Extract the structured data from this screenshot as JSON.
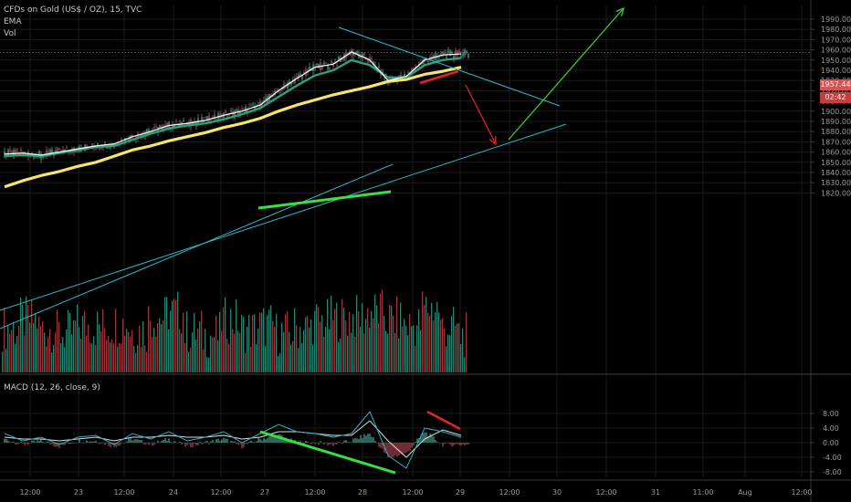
{
  "header": {
    "symbol_line": "CFDs on Gold (US$ / OZ), 15, TVC",
    "ema_label": "EMA",
    "vol_label": "Vol",
    "macd_label": "MACD (12, 26, close, 9)"
  },
  "price_tags": {
    "last_price": "1957.44",
    "countdown": "02:42"
  },
  "colors": {
    "background": "#000000",
    "grid": "#1b1b1b",
    "axis_line": "#3a3a3a",
    "ema_fast": "#ffffff",
    "ema_mid": "#2aa37b",
    "ema_slow": "#f5e66a",
    "trend_line": "#2cb8c8",
    "highlight_green": "#37e23c",
    "highlight_red": "#e0242c",
    "arrow_green": "#38c92e",
    "arrow_red": "#e02020",
    "vol_up": "#2a8f7a",
    "vol_down": "#a93b44",
    "macd_line": "#2eb0c0",
    "signal_line": "#dddddd"
  },
  "chart_data": [
    {
      "type": "line",
      "panel": "price",
      "title": "CFDs on Gold (US$ / OZ), 15, TVC",
      "x_tick_labels": [
        "12:00",
        "23",
        "12:00",
        "24",
        "12:00",
        "27",
        "12:00",
        "28",
        "12:00",
        "29",
        "12:00",
        "30",
        "12:00",
        "31",
        "11:00",
        "Aug",
        "12:00"
      ],
      "y_tick_labels": [
        "1990.00",
        "1980.00",
        "1970.00",
        "1960.00",
        "1950.00",
        "1940.00",
        "1930.00",
        "1920.00",
        "1910.00",
        "1900.00",
        "1890.00",
        "1880.00",
        "1870.00",
        "1860.00",
        "1850.00",
        "1840.00",
        "1830.00",
        "1820.00"
      ],
      "ylim": [
        1815,
        1996
      ],
      "grid": true,
      "last_price": 1957.44,
      "x": [
        0,
        20,
        40,
        60,
        80,
        100,
        120,
        140,
        160,
        180,
        200,
        220,
        240,
        260,
        280,
        300,
        320,
        340,
        360,
        380,
        400,
        420,
        440,
        460,
        480,
        500
      ],
      "series": [
        {
          "name": "EMA",
          "values": [
            1858,
            1859,
            1857,
            1860,
            1863,
            1866,
            1868,
            1875,
            1880,
            1886,
            1888,
            1891,
            1896,
            1900,
            1906,
            1920,
            1932,
            1943,
            1946,
            1958,
            1950,
            1930,
            1934,
            1950,
            1955,
            1956
          ]
        },
        {
          "values": [
            1856,
            1857,
            1856,
            1859,
            1862,
            1865,
            1866,
            1872,
            1878,
            1883,
            1886,
            1888,
            1892,
            1897,
            1903,
            1914,
            1925,
            1935,
            1940,
            1950,
            1945,
            1933,
            1933,
            1945,
            1950,
            1952
          ]
        },
        {
          "values": [
            1826,
            1832,
            1837,
            1841,
            1846,
            1850,
            1856,
            1862,
            1866,
            1871,
            1875,
            1879,
            1884,
            1888,
            1893,
            1900,
            1906,
            1911,
            1916,
            1920,
            1924,
            1929,
            1931,
            1936,
            1939,
            1943
          ]
        }
      ]
    },
    {
      "type": "bar",
      "panel": "volume",
      "title": "Vol",
      "x": [
        0,
        20,
        40,
        60,
        80,
        100,
        120,
        140,
        160,
        180,
        200,
        220,
        240,
        260,
        280,
        300,
        320,
        340,
        360,
        380,
        400,
        420,
        440,
        460,
        480,
        500
      ],
      "values": [
        40,
        55,
        38,
        30,
        45,
        42,
        48,
        35,
        60,
        70,
        32,
        25,
        55,
        36,
        44,
        30,
        40,
        52,
        58,
        60,
        70,
        55,
        45,
        78,
        40,
        25
      ]
    },
    {
      "type": "line",
      "panel": "macd",
      "title": "MACD (12, 26, close, 9)",
      "y_tick_labels": [
        "8.00",
        "4.00",
        "0.00",
        "-4.00",
        "-8.00"
      ],
      "ylim": [
        -10,
        10
      ],
      "grid": true,
      "x": [
        0,
        20,
        40,
        60,
        80,
        100,
        120,
        140,
        160,
        180,
        200,
        220,
        240,
        260,
        280,
        300,
        320,
        340,
        360,
        380,
        400,
        420,
        440,
        460,
        480,
        500
      ],
      "series": [
        {
          "name": "MACD",
          "values": [
            2.5,
            0.5,
            1.5,
            -0.5,
            1.5,
            2.0,
            -0.5,
            2.5,
            1.0,
            3.0,
            0.5,
            1.5,
            3.0,
            0.0,
            2.5,
            5.0,
            3.0,
            2.5,
            1.5,
            2.5,
            8.5,
            -3.5,
            -7.0,
            4.0,
            3.0,
            1.5
          ]
        },
        {
          "values": [
            1.5,
            1.0,
            1.0,
            0.5,
            1.0,
            1.5,
            0.5,
            1.5,
            1.5,
            2.0,
            1.5,
            1.5,
            2.0,
            1.0,
            1.5,
            3.0,
            3.0,
            2.5,
            2.0,
            2.0,
            6.0,
            0.5,
            -4.0,
            1.0,
            3.5,
            2.0
          ]
        }
      ]
    }
  ]
}
